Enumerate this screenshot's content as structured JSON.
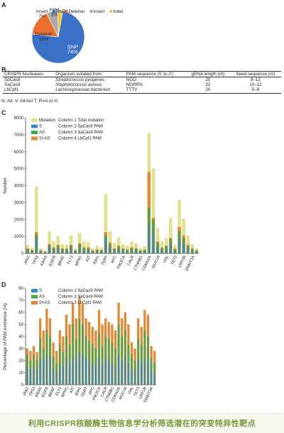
{
  "panel_labels": {
    "a": "A",
    "b": "B",
    "c": "C",
    "d": "D"
  },
  "colors": {
    "snp": "#3a70c6",
    "deletion": "#ea6f2d",
    "insert": "#a9a9a9",
    "indel": "#f2c43a",
    "total": "#e4e18a",
    "s": "#2c8fd0",
    "as": "#48a84a",
    "s_as": "#e38a32",
    "caption": "#7a9a3a"
  },
  "table_b": {
    "headers": [
      "CRISPR Nucleases",
      "Organism isolated from",
      "PAM sequence (5' to 3')",
      "gRNA length (nt)",
      "Seed sequence (nt)"
    ],
    "rows": [
      [
        "SpCas9",
        "Streptococcus pyogenes",
        "NGG",
        "20",
        "8–12"
      ],
      [
        "SaCas9",
        "Staphylococcus aureus",
        "NGRRN",
        "22",
        "10–12"
      ],
      [
        "LbCpf1",
        "Lachnospiraceae bacterium",
        "TTTV",
        "20",
        "5–8"
      ]
    ],
    "note": "N: All; V:   All but T; R=A or G"
  },
  "caption": "利用CRISPR核酸酶生物信息学分析筛选潜在的突变特异性靶点",
  "chart_data": [
    {
      "panel": "A",
      "type": "pie",
      "categories": [
        "SNP",
        "Deletion",
        "Insert",
        "Indel"
      ],
      "values": [
        74,
        16,
        7,
        3
      ],
      "value_labels": [
        "SNP\n74%",
        "Deletion\n16%",
        "Insert\n7%",
        "Indel\n3%"
      ],
      "legend": [
        "SNP",
        "Deletion",
        "Insert",
        "Indel"
      ],
      "legend_position": "top-right"
    },
    {
      "panel": "C",
      "type": "bar",
      "ylabel": "Number",
      "ylim": [
        0,
        8000
      ],
      "yticks": [
        0,
        1000,
        2000,
        3000,
        4000,
        5000,
        6000,
        7000,
        8000
      ],
      "x_tick_labels": [
        "JAK2",
        "TP53",
        "KRAS",
        "EGFR",
        "BRAF",
        "FLT3",
        "NPM1",
        "KIT",
        "IDH1",
        "TERT",
        "APC",
        "PIK3CA",
        "CALR",
        "CTNNB1",
        "CDKN2A",
        "MUC16",
        "VHL",
        "TET2",
        "LRP1B",
        "DNMT3A"
      ],
      "legend": [
        {
          "label": "Mutation",
          "description": "Column 1 Total mutation"
        },
        {
          "label": "S",
          "description": "Column 2 SpCas9 PAM"
        },
        {
          "label": "AS",
          "description": "Column 3 SaCas9 PAM"
        },
        {
          "label": "S+AS",
          "description": "Column 4 LbCpf1 PAM"
        }
      ],
      "legend_position": "top-left",
      "gene_count": 40,
      "series": [
        {
          "name": "Mutation",
          "values": [
            500,
            350,
            3950,
            300,
            150,
            1300,
            700,
            1000,
            550,
            500,
            1050,
            300,
            1200,
            700,
            650,
            300,
            450,
            350,
            3500,
            1300,
            600,
            950,
            550,
            450,
            700,
            600,
            300,
            400,
            7100,
            5000,
            1500,
            700,
            900,
            2100,
            500,
            3150,
            2050,
            1050,
            550,
            300
          ]
        },
        {
          "name": "S",
          "values": [
            150,
            100,
            900,
            80,
            40,
            350,
            200,
            300,
            150,
            150,
            300,
            90,
            350,
            200,
            200,
            80,
            120,
            100,
            900,
            350,
            150,
            250,
            150,
            120,
            180,
            150,
            80,
            110,
            1700,
            1250,
            400,
            180,
            250,
            550,
            130,
            800,
            550,
            300,
            150,
            80
          ]
        },
        {
          "name": "AS",
          "values": [
            250,
            180,
            1100,
            150,
            80,
            500,
            300,
            450,
            250,
            250,
            450,
            150,
            550,
            300,
            300,
            150,
            200,
            180,
            1050,
            550,
            250,
            400,
            250,
            200,
            300,
            250,
            150,
            200,
            2700,
            2000,
            600,
            300,
            400,
            850,
            230,
            1300,
            900,
            450,
            250,
            150
          ]
        },
        {
          "name": "S+AS",
          "values": [
            300,
            200,
            1250,
            180,
            100,
            550,
            350,
            500,
            300,
            280,
            500,
            180,
            600,
            350,
            350,
            180,
            230,
            200,
            1250,
            650,
            300,
            450,
            300,
            230,
            350,
            300,
            180,
            230,
            4800,
            2100,
            700,
            350,
            450,
            900,
            280,
            1550,
            1050,
            500,
            300,
            180
          ]
        }
      ]
    },
    {
      "panel": "D",
      "type": "bar",
      "ylabel": "Percentage of PAM existence (%)",
      "ylim": [
        0,
        80
      ],
      "yticks": [
        0,
        10,
        20,
        30,
        40,
        50,
        60,
        70,
        80
      ],
      "x_tick_labels": [
        "JAK2",
        "TP53",
        "KRAS",
        "EGFR",
        "BRAF",
        "FLT3",
        "NPM1",
        "KIT",
        "IDH1",
        "TERT",
        "APC",
        "PIK3CA",
        "CALR",
        "CTNNB1",
        "CDKN2A",
        "MUC16",
        "VHL",
        "TET2",
        "LRP1B",
        "DNMT3A"
      ],
      "legend": [
        {
          "label": "S",
          "description": "Column 1 SpCas9 PAM"
        },
        {
          "label": "AS",
          "description": "Column 2 SaCas9 PAM"
        },
        {
          "label": "S+AS",
          "description": "Column 3 LbCpf1 PAM"
        }
      ],
      "legend_position": "top-left",
      "gene_count": 40,
      "series": [
        {
          "name": "S",
          "values": [
            15,
            12,
            14,
            12,
            22,
            20,
            25,
            23,
            13,
            10,
            17,
            15,
            22,
            18,
            24,
            20,
            27,
            25,
            22,
            20,
            18,
            15,
            23,
            17,
            22,
            20,
            18,
            15,
            25,
            20,
            23,
            17,
            14,
            12,
            20,
            18,
            23,
            20,
            12,
            10
          ]
        },
        {
          "name": "AS",
          "values": [
            25,
            20,
            25,
            21,
            38,
            30,
            45,
            40,
            23,
            18,
            32,
            27,
            40,
            33,
            50,
            38,
            55,
            50,
            40,
            36,
            34,
            30,
            43,
            32,
            40,
            38,
            35,
            30,
            50,
            40,
            45,
            33,
            25,
            20,
            38,
            33,
            45,
            40,
            22,
            18
          ]
        },
        {
          "name": "S+AS",
          "values": [
            30,
            28,
            32,
            27,
            55,
            45,
            63,
            55,
            35,
            28,
            45,
            40,
            58,
            50,
            68,
            55,
            73,
            67,
            55,
            52,
            48,
            45,
            62,
            50,
            55,
            52,
            50,
            45,
            68,
            55,
            60,
            50,
            35,
            30,
            55,
            48,
            62,
            58,
            32,
            28
          ]
        }
      ]
    }
  ]
}
